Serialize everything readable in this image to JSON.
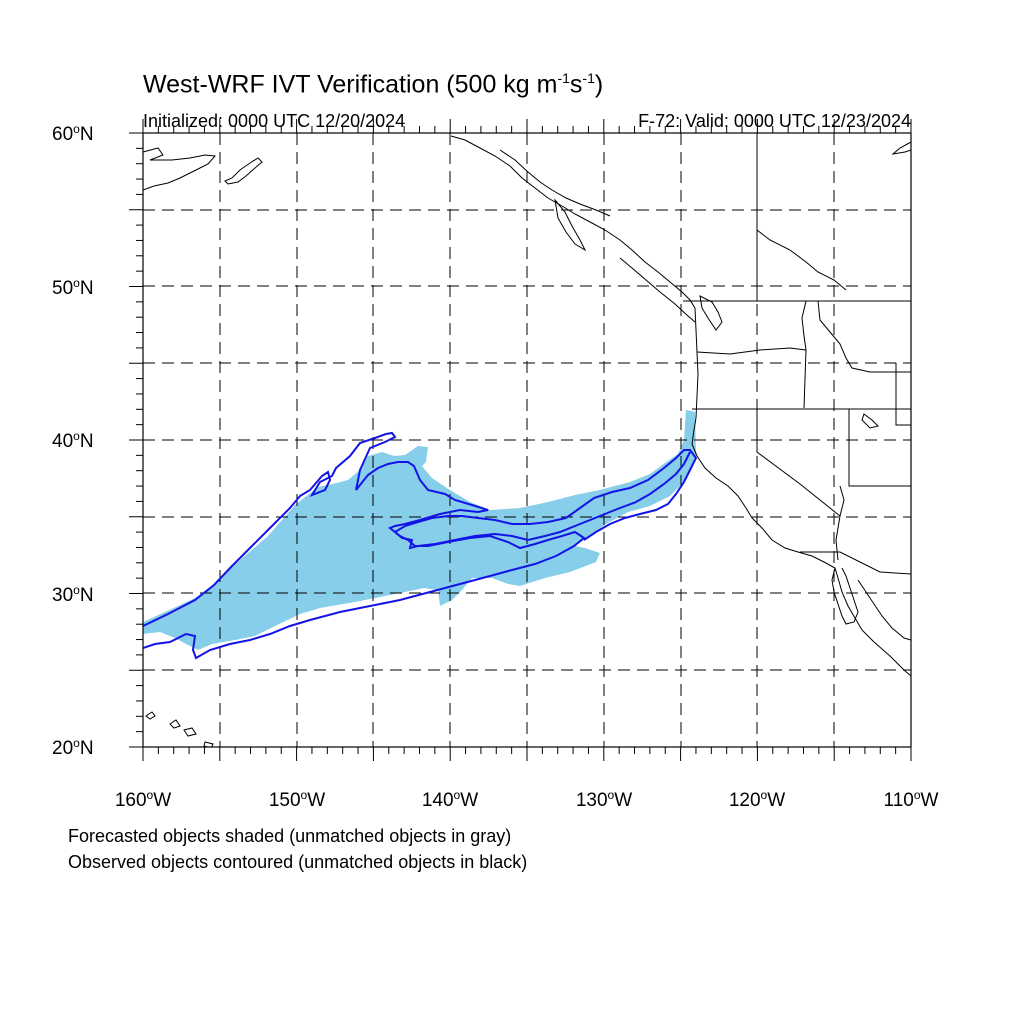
{
  "title": {
    "text": "West-WRF IVT Verification (500 kg m",
    "sup1": "-1",
    "mid": "s",
    "sup2": "-1",
    "end": ")"
  },
  "init_label": "Initialized: 0000 UTC 12/20/2024",
  "valid_label": "F-72: Valid: 0000 UTC 12/23/2024",
  "lat_labels": [
    "60",
    "50",
    "40",
    "30",
    "20"
  ],
  "lat_suffix": "N",
  "lon_labels": [
    "160",
    "150",
    "140",
    "130",
    "120",
    "110"
  ],
  "lon_suffix": "W",
  "degree_symbol": "o",
  "notes": [
    "Forecasted objects shaded (unmatched objects in gray)",
    "Observed objects contoured (unmatched objects in black)"
  ],
  "colors": {
    "forecast_fill": "#87ceeb",
    "observed_contour": "#1414e6",
    "coastline": "#000000",
    "grid": "#000000"
  }
}
